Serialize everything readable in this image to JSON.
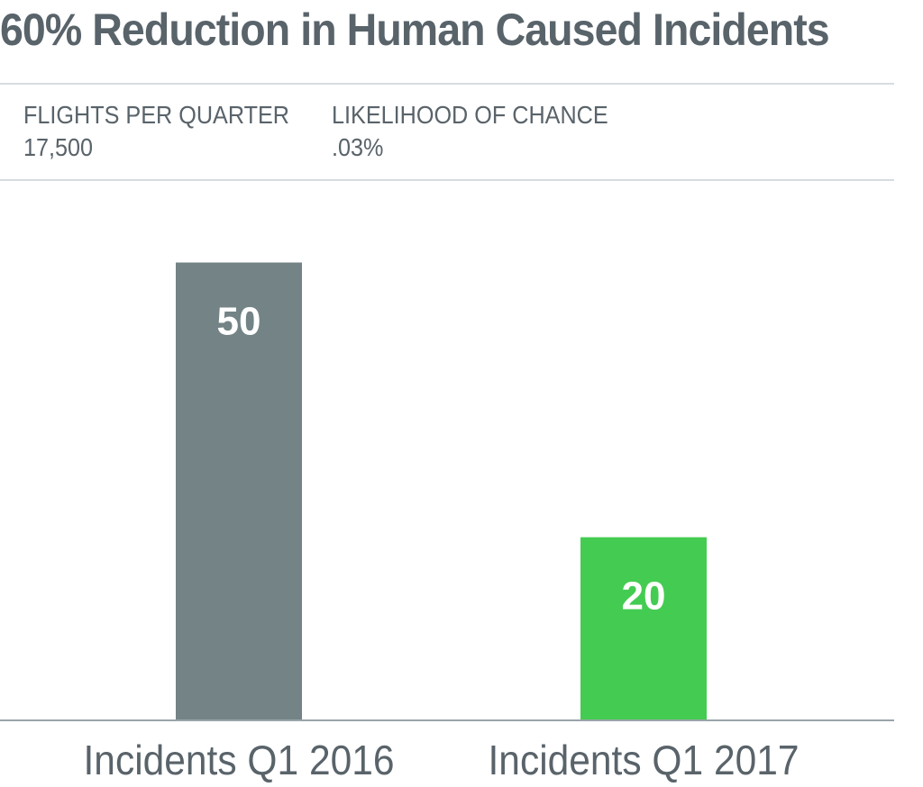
{
  "header": {
    "title": "60% Reduction in Human Caused Incidents"
  },
  "stats": [
    {
      "label": "FLIGHTS PER QUARTER",
      "value": "17,500"
    },
    {
      "label": "LIKELIHOOD OF CHANCE",
      "value": ".03%"
    }
  ],
  "chart_data": {
    "type": "bar",
    "categories": [
      "Incidents Q1 2016",
      "Incidents Q1 2017"
    ],
    "values": [
      50,
      20
    ],
    "data_labels": [
      "50",
      "20"
    ],
    "colors": [
      "#738386",
      "#44cc52"
    ],
    "ylim": [
      0,
      59
    ],
    "grid": false,
    "legend": "none"
  }
}
